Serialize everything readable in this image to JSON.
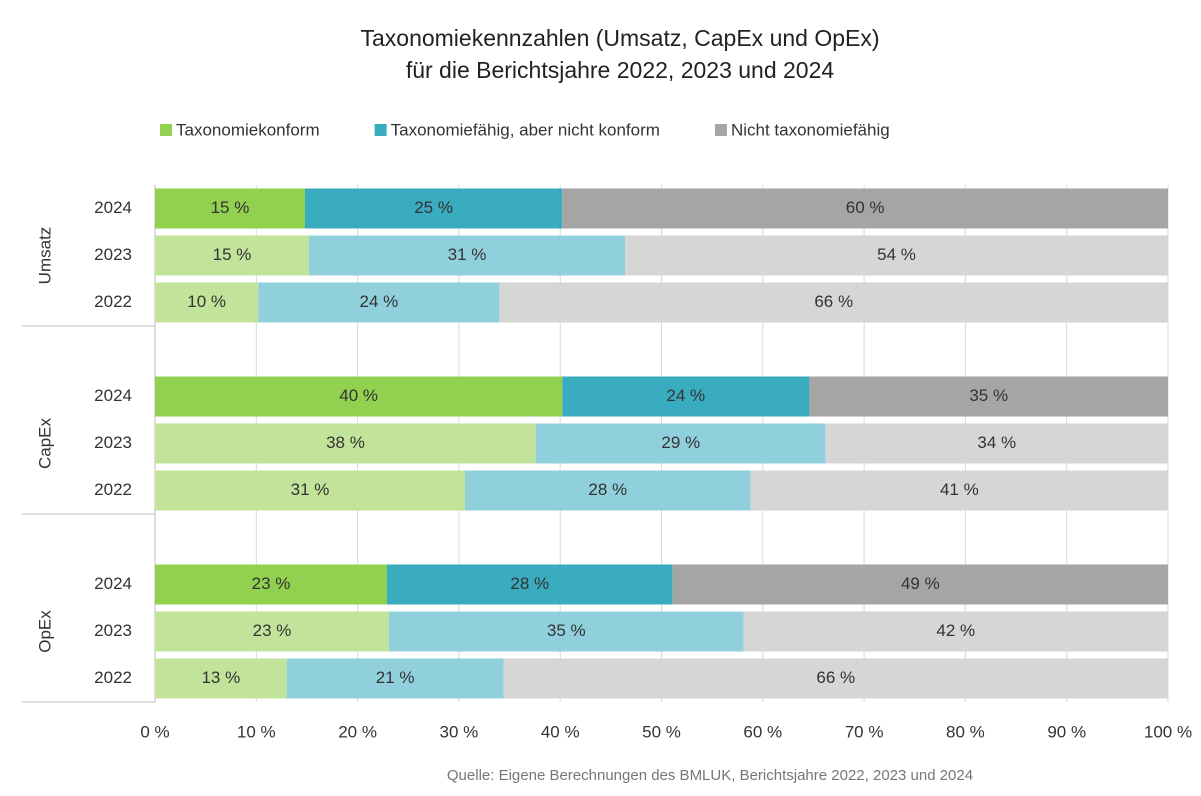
{
  "chart_data": {
    "type": "stacked_barh",
    "title": [
      "Taxonomiekennzahlen (Umsatz, CapEx und OpEx)",
      "für die Berichtsjahre 2022, 2023 und 2024"
    ],
    "source": "Quelle: Eigene Berechnungen des BMLUK, Berichtsjahre 2022, 2023 und 2024",
    "groups": [
      {
        "name": "Umsatz",
        "categories": [
          "2024",
          "2023",
          "2022"
        ]
      },
      {
        "name": "CapEx",
        "categories": [
          "2024",
          "2023",
          "2022"
        ]
      },
      {
        "name": "OpEx",
        "categories": [
          "2024",
          "2023",
          "2022"
        ]
      }
    ],
    "series": [
      {
        "name": "Taxonomiekonform",
        "color": "#92d050",
        "colors": [
          "#92d050",
          "#c2e49a",
          "#c2e49a",
          "#92d050",
          "#c2e49a",
          "#c2e49a",
          "#92d050",
          "#c2e49a",
          "#c2e49a"
        ],
        "values": [
          14.8,
          15.2,
          10.2,
          40.2,
          37.6,
          30.6,
          22.9,
          23.1,
          13
        ],
        "value_labels": [
          "15 %",
          "15 %",
          "10 %",
          "40 %",
          "38 %",
          "31 %",
          "23 %",
          "23 %",
          "13 %"
        ]
      },
      {
        "name": "Taxonomiefähig, aber nicht konform",
        "color": "#3aacbf",
        "colors": [
          "#3aacbf",
          "#90d0dc",
          "#90d0dc",
          "#3aacbf",
          "#90d0dc",
          "#90d0dc",
          "#3aacbf",
          "#90d0dc",
          "#90d0dc"
        ],
        "values": [
          25.4,
          31.2,
          23.8,
          24.4,
          28.6,
          28.2,
          28.2,
          35,
          21.4
        ],
        "value_labels": [
          "25 %",
          "31 %",
          "24 %",
          "24 %",
          "29 %",
          "28 %",
          "28 %",
          "35 %",
          "21 %"
        ]
      },
      {
        "name": "Nicht taxonomiefähig",
        "color": "#a5a5a5",
        "colors": [
          "#a5a5a5",
          "#d6d6d6",
          "#d6d6d6",
          "#a5a5a5",
          "#d6d6d6",
          "#d6d6d6",
          "#a5a5a5",
          "#d6d6d6",
          "#d6d6d6"
        ],
        "values": [
          59.8,
          53.6,
          66,
          35.4,
          33.8,
          41.2,
          48.9,
          41.9,
          65.6
        ],
        "value_labels": [
          "60 %",
          "54 %",
          "66 %",
          "35 %",
          "34 %",
          "41 %",
          "49 %",
          "42 %",
          "66 %"
        ]
      }
    ],
    "xlim": [
      0,
      100
    ],
    "xticks": [
      {
        "value": 0,
        "label": "0 %"
      },
      {
        "value": 10,
        "label": "10 %"
      },
      {
        "value": 20,
        "label": "20 %"
      },
      {
        "value": 30,
        "label": "30 %"
      },
      {
        "value": 40,
        "label": "40 %"
      },
      {
        "value": 50,
        "label": "50 %"
      },
      {
        "value": 60,
        "label": "60 %"
      },
      {
        "value": 70,
        "label": "70 %"
      },
      {
        "value": 80,
        "label": "80 %"
      },
      {
        "value": 90,
        "label": "90 %"
      },
      {
        "value": 100,
        "label": "100 %"
      }
    ],
    "grid": true,
    "legend": "top"
  }
}
